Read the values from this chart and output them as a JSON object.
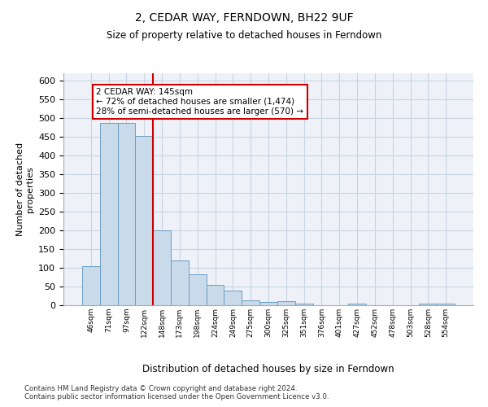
{
  "title": "2, CEDAR WAY, FERNDOWN, BH22 9UF",
  "subtitle": "Size of property relative to detached houses in Ferndown",
  "xlabel": "Distribution of detached houses by size in Ferndown",
  "ylabel": "Number of detached\nproperties",
  "categories": [
    "46sqm",
    "71sqm",
    "97sqm",
    "122sqm",
    "148sqm",
    "173sqm",
    "198sqm",
    "224sqm",
    "249sqm",
    "275sqm",
    "300sqm",
    "325sqm",
    "351sqm",
    "376sqm",
    "401sqm",
    "427sqm",
    "452sqm",
    "478sqm",
    "503sqm",
    "528sqm",
    "554sqm"
  ],
  "values": [
    105,
    487,
    487,
    453,
    200,
    120,
    83,
    55,
    40,
    14,
    9,
    10,
    4,
    1,
    1,
    5,
    1,
    0,
    1,
    5,
    5
  ],
  "bar_color": "#c9daea",
  "bar_edge_color": "#6b9dc2",
  "marker_index": 3,
  "marker_label": "2 CEDAR WAY: 145sqm",
  "annotation_line1": "← 72% of detached houses are smaller (1,474)",
  "annotation_line2": "28% of semi-detached houses are larger (570) →",
  "marker_color": "#cc0000",
  "ylim": [
    0,
    620
  ],
  "yticks": [
    0,
    50,
    100,
    150,
    200,
    250,
    300,
    350,
    400,
    450,
    500,
    550,
    600
  ],
  "grid_color": "#c8d4e3",
  "background_color": "#eef2f8",
  "footnote1": "Contains HM Land Registry data © Crown copyright and database right 2024.",
  "footnote2": "Contains public sector information licensed under the Open Government Licence v3.0."
}
